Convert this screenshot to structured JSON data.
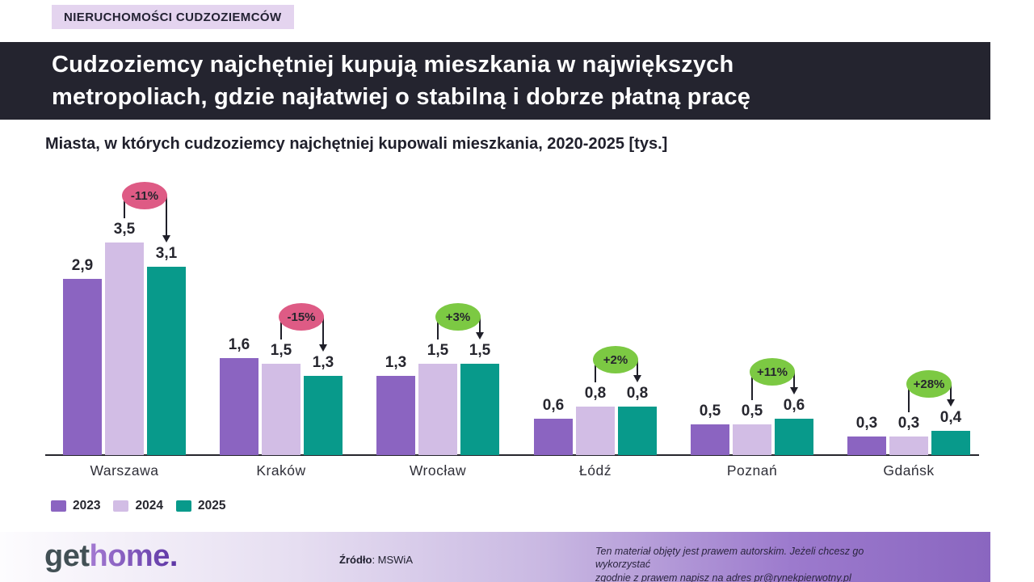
{
  "kicker": {
    "label": "NIERUCHOMOŚCI CUDZOZIEMCÓW",
    "bg": "#e4d4ef"
  },
  "header": {
    "title_lines": [
      "Cudzoziemcy najchętniej kupują mieszkania w największych",
      "metropoliach, gdzie najłatwiej o stabilną i dobrze płatną pracę"
    ],
    "bg": "#24242f"
  },
  "chart_data": {
    "type": "bar",
    "title": "Miasta, w których cudzoziemcy najchętniej kupowali mieszkania, 2020-2025 [tys.]",
    "unit": "tys.",
    "categories": [
      "Warszawa",
      "Kraków",
      "Wrocław",
      "Łódź",
      "Poznań",
      "Gdańsk"
    ],
    "series": [
      {
        "name": "2023",
        "color": "#8b64c1",
        "values": [
          2.9,
          1.6,
          1.3,
          0.6,
          0.5,
          0.3
        ]
      },
      {
        "name": "2024",
        "color": "#d2bde5",
        "values": [
          3.5,
          1.5,
          1.5,
          0.8,
          0.5,
          0.3
        ]
      },
      {
        "name": "2025",
        "color": "#089a8b",
        "values": [
          3.1,
          1.3,
          1.5,
          0.8,
          0.6,
          0.4
        ]
      }
    ],
    "change_badges": {
      "labels": [
        "-11%",
        "-15%",
        "+3%",
        "+2%",
        "+11%",
        "+28%"
      ],
      "from_series": "2024",
      "to_series": "2025",
      "negative_color": "#de5b85",
      "positive_color": "#7cc943"
    },
    "value_label_format": "comma_decimal",
    "ylim": [
      0,
      3.5
    ],
    "grid": false,
    "legend": [
      "2023",
      "2024",
      "2025"
    ],
    "legend_position": "bottom-left"
  },
  "footer": {
    "logo_get": "get",
    "logo_home": "home.",
    "source_label": "Źródło",
    "source_rest": ": MSWiA",
    "rights_line1": "Ten materiał objęty jest prawem autorskim. Jeżeli chcesz go wykorzystać",
    "rights_line2_prefix": "zgodnie z prawem napisz na adres ",
    "rights_link": "pr@rynekpierwotny.pl"
  }
}
